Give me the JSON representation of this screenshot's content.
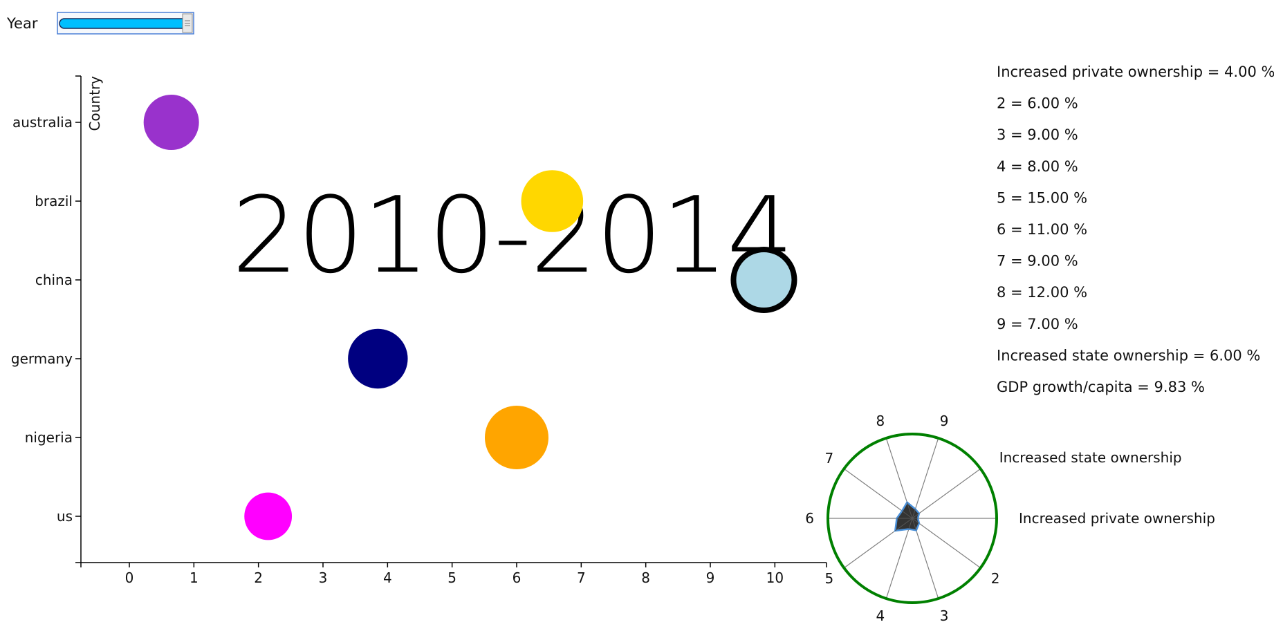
{
  "controls": {
    "year_label": "Year",
    "slider_value": 1.0,
    "slider_fill_color": "#00bfff"
  },
  "overlay": {
    "period_text": "2010-2014"
  },
  "chart_data": [
    {
      "type": "scatter",
      "ylabel": "Country",
      "xlabel": "",
      "categories": [
        "australia",
        "brazil",
        "china",
        "germany",
        "nigeria",
        "us"
      ],
      "xlim": [
        -0.75,
        10.8
      ],
      "x_ticks": [
        "0",
        "1",
        "2",
        "3",
        "4",
        "5",
        "6",
        "7",
        "8",
        "9",
        "10"
      ],
      "points": [
        {
          "category": "australia",
          "x": 0.65,
          "size": 1.0,
          "color": "#9932cc",
          "highlight": false
        },
        {
          "category": "brazil",
          "x": 6.55,
          "size": 1.12,
          "color": "#ffd700",
          "highlight": false
        },
        {
          "category": "china",
          "x": 9.83,
          "size": 1.2,
          "color": "#add8e6",
          "highlight": true
        },
        {
          "category": "germany",
          "x": 3.85,
          "size": 1.08,
          "color": "#000080",
          "highlight": false
        },
        {
          "category": "nigeria",
          "x": 6.0,
          "size": 1.15,
          "color": "#ffa500",
          "highlight": false
        },
        {
          "category": "us",
          "x": 2.15,
          "size": 0.86,
          "color": "#ff00ff",
          "highlight": false
        }
      ],
      "grid": false
    },
    {
      "type": "radar",
      "axes": [
        "Increased private ownership",
        "2",
        "3",
        "4",
        "5",
        "6",
        "7",
        "8",
        "9",
        "Increased state ownership"
      ],
      "values": [
        4.0,
        6.0,
        9.0,
        8.0,
        15.0,
        11.0,
        9.0,
        12.0,
        7.0,
        6.0
      ],
      "max": 60,
      "ring_color": "#008000",
      "fill_color": "#333333",
      "stroke_color": "#4a90d9"
    }
  ],
  "readouts": [
    "Increased private ownership = 4.00 %",
    "2 = 6.00 %",
    "3 = 9.00 %",
    "4 = 8.00 %",
    "5 = 15.00 %",
    "6 = 11.00 %",
    "7 = 9.00 %",
    "8 = 12.00 %",
    "9 = 7.00 %",
    "Increased state ownership = 6.00 %",
    "GDP growth/capita = 9.83 %"
  ]
}
